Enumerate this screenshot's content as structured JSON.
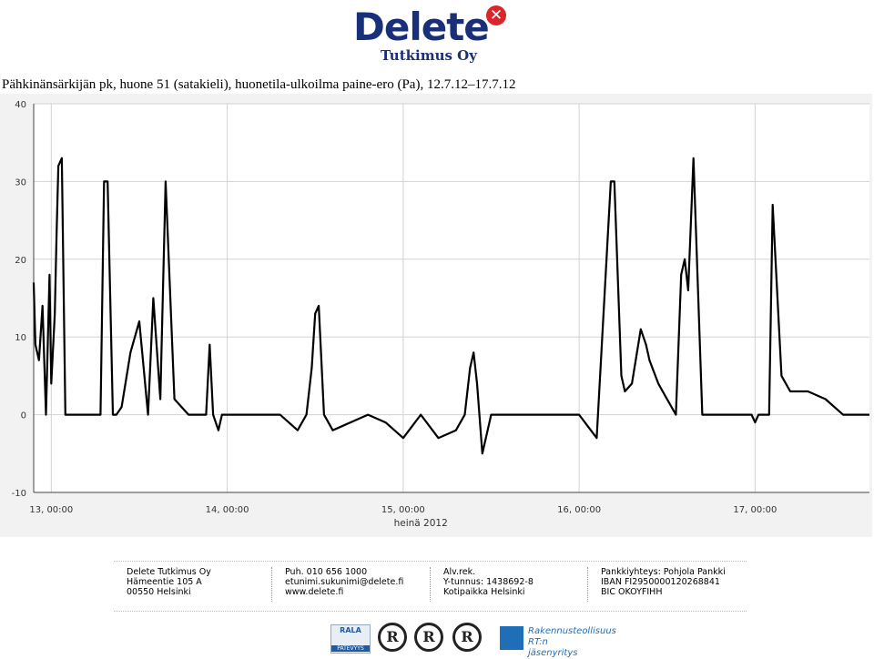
{
  "logo": {
    "name": "Delete",
    "mark": "✕",
    "sub": "Tutkimus Oy"
  },
  "title": "Pähkinänsärkijän pk, huone 51 (satakieli), huonetila-ulkoilma paine-ero (Pa), 12.7.12–17.7.12",
  "chart_data": {
    "type": "line",
    "title": "Pähkinänsärkijän pk, huone 51 (satakieli), huonetila-ulkoilma paine-ero (Pa), 12.7.12–17.7.12",
    "xlabel": "heinä 2012",
    "ylabel": "",
    "x_unit": "days (July 2012)",
    "xlim": [
      12.9,
      17.65
    ],
    "ylim": [
      -10,
      40
    ],
    "yticks": [
      -10,
      0,
      10,
      20,
      30,
      40
    ],
    "xticks": [
      {
        "value": 13.0,
        "label": "13, 00:00"
      },
      {
        "value": 14.0,
        "label": "14, 00:00"
      },
      {
        "value": 15.0,
        "label": "15, 00:00"
      },
      {
        "value": 16.0,
        "label": "16, 00:00"
      },
      {
        "value": 17.0,
        "label": "17, 00:00"
      }
    ],
    "grid": true,
    "legend": "none",
    "colors": {
      "line": "#000000",
      "background": "#f2f2f2",
      "grid": "#d2d2d2",
      "axis_text": "#333333"
    },
    "series": [
      {
        "x": [
          12.9,
          12.91,
          12.93,
          12.95,
          12.97,
          12.99,
          13.0,
          13.02,
          13.03,
          13.04,
          13.06,
          13.08,
          13.09,
          13.1,
          13.15,
          13.2,
          13.28,
          13.3,
          13.32,
          13.35,
          13.37,
          13.4,
          13.45,
          13.5,
          13.55,
          13.58,
          13.62,
          13.65,
          13.7,
          13.78,
          13.8,
          13.82,
          13.85,
          13.88,
          13.9,
          13.92,
          13.95,
          13.97,
          14.0,
          14.05,
          14.1,
          14.2,
          14.3,
          14.4,
          14.45,
          14.48,
          14.5,
          14.52,
          14.55,
          14.6,
          14.7,
          14.8,
          14.9,
          15.0,
          15.1,
          15.2,
          15.3,
          15.35,
          15.38,
          15.4,
          15.42,
          15.45,
          15.5,
          15.6,
          15.7,
          15.8,
          15.9,
          16.0,
          16.1,
          16.18,
          16.2,
          16.24,
          16.26,
          16.3,
          16.35,
          16.38,
          16.4,
          16.45,
          16.5,
          16.55,
          16.58,
          16.6,
          16.62,
          16.65,
          16.7,
          16.8,
          16.9,
          16.95,
          16.98,
          17.0,
          17.02,
          17.05,
          17.08,
          17.1,
          17.15,
          17.2,
          17.3,
          17.4,
          17.5,
          17.6,
          17.65
        ],
        "y": [
          17,
          9,
          7,
          14,
          0,
          18,
          4,
          13,
          23,
          32,
          33,
          0,
          0,
          0,
          0,
          0,
          0,
          30,
          30,
          0,
          0,
          1,
          8,
          12,
          0,
          15,
          2,
          30,
          2,
          0,
          0,
          0,
          0,
          0,
          9,
          0,
          -2,
          0,
          0,
          0,
          0,
          0,
          0,
          -2,
          0,
          6,
          13,
          14,
          0,
          -2,
          -1,
          0,
          -1,
          -3,
          0,
          -3,
          -2,
          0,
          6,
          8,
          4,
          -5,
          0,
          0,
          0,
          0,
          0,
          0,
          -3,
          30,
          30,
          5,
          3,
          4,
          11,
          9,
          7,
          4,
          2,
          0,
          18,
          20,
          16,
          33,
          0,
          0,
          0,
          0,
          0,
          -1,
          0,
          0,
          0,
          27,
          5,
          3,
          3,
          2,
          0,
          0,
          0
        ]
      }
    ]
  },
  "footer": {
    "col1": [
      "Delete Tutkimus Oy",
      "Hämeentie 105 A",
      "00550 Helsinki"
    ],
    "col2": [
      "Puh. 010 656 1000",
      "etunimi.sukunimi@delete.fi",
      "www.delete.fi"
    ],
    "col3": [
      "Alv.rek.",
      "Y-tunnus: 1438692-8",
      "Kotipaikka Helsinki"
    ],
    "col4": [
      "Pankkiyhteys: Pohjola Pankki",
      "IBAN FI2950000120268841",
      "BIC OKOYFIHH"
    ]
  },
  "badges": {
    "rala_top": "RALA",
    "rala_bottom": "PÄTEVYYS",
    "r_mark": "R",
    "rt_line1": "Rakennusteollisuus RT:n",
    "rt_line2": "jäsenyritys"
  }
}
